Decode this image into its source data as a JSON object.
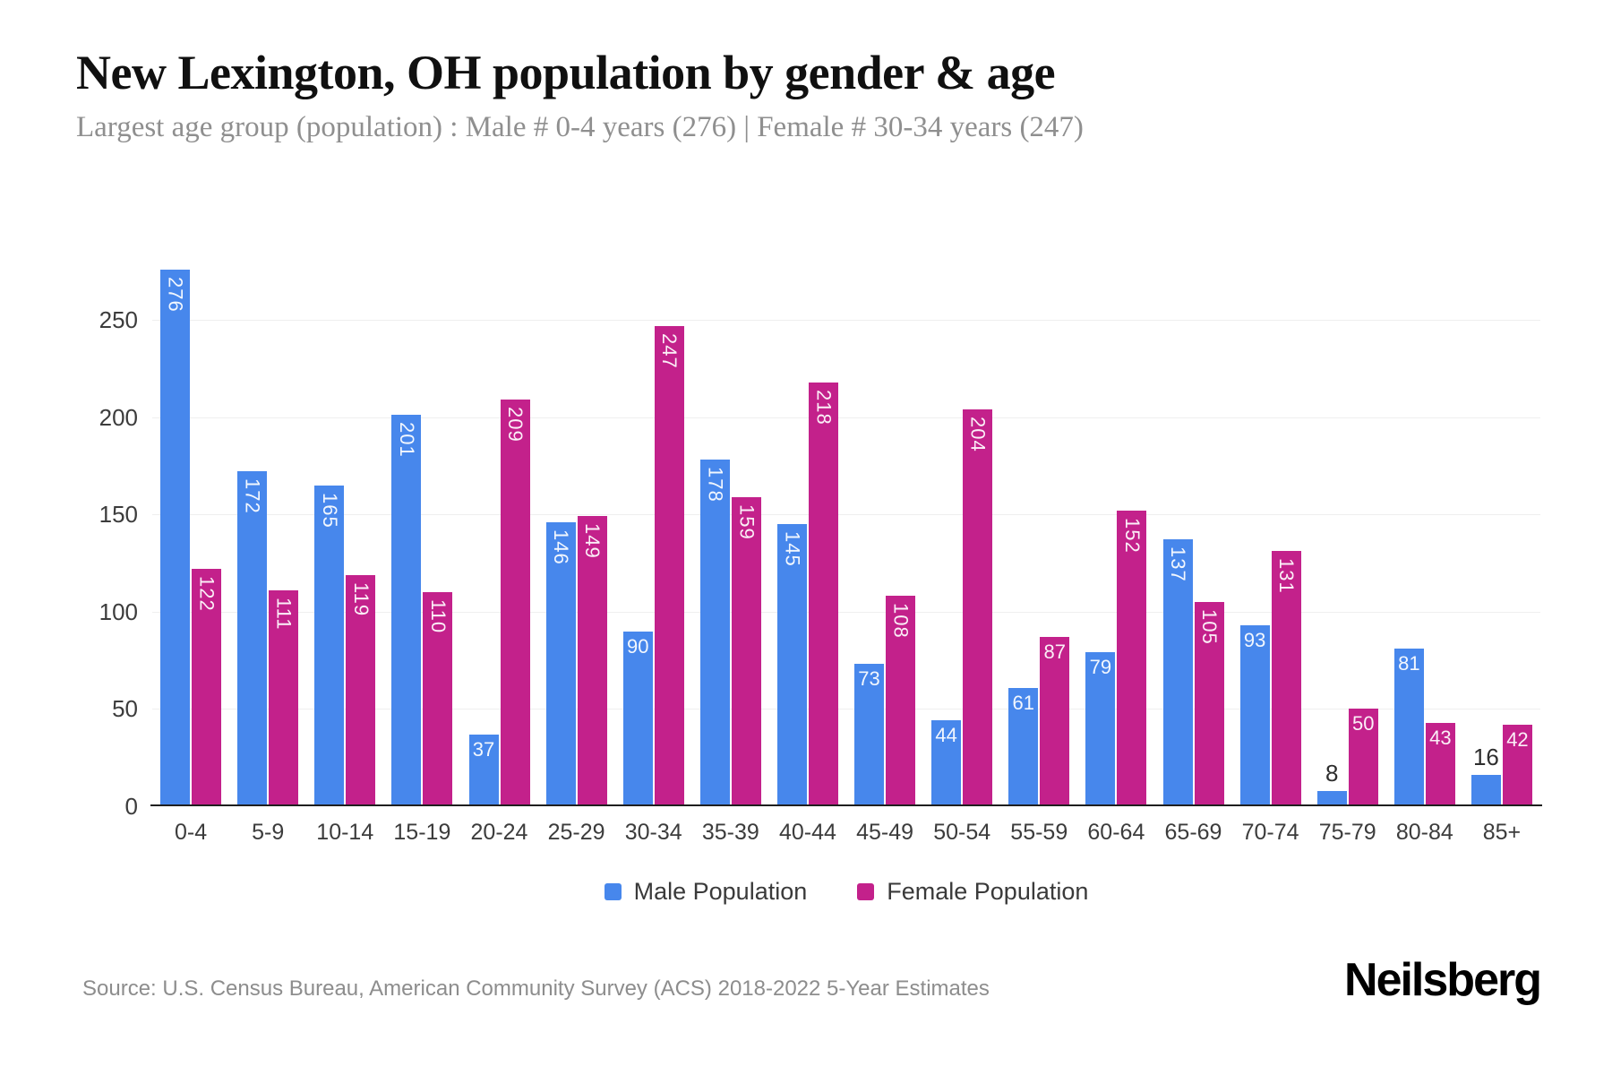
{
  "header": {
    "title": "New Lexington, OH population by gender & age",
    "subtitle": "Largest age group (population) : Male # 0-4 years (276) | Female # 30-34 years (247)"
  },
  "chart_data": {
    "type": "bar",
    "title": "New Lexington, OH population by gender & age",
    "categories": [
      "0-4",
      "5-9",
      "10-14",
      "15-19",
      "20-24",
      "25-29",
      "30-34",
      "35-39",
      "40-44",
      "45-49",
      "50-54",
      "55-59",
      "60-64",
      "65-69",
      "70-74",
      "75-79",
      "80-84",
      "85+"
    ],
    "series": [
      {
        "name": "Male Population",
        "color": "#4787ec",
        "values": [
          276,
          172,
          165,
          201,
          37,
          146,
          90,
          178,
          145,
          73,
          44,
          61,
          79,
          137,
          93,
          8,
          81,
          16
        ]
      },
      {
        "name": "Female Population",
        "color": "#c3218b",
        "values": [
          122,
          111,
          119,
          110,
          209,
          149,
          247,
          159,
          218,
          108,
          204,
          87,
          152,
          105,
          131,
          50,
          43,
          42
        ]
      }
    ],
    "xlabel": "",
    "ylabel": "",
    "yticks": [
      0,
      50,
      100,
      150,
      200,
      250
    ],
    "ylim": [
      0,
      299
    ],
    "grid": true,
    "legend_position": "bottom",
    "value_labels": true,
    "grid_color": "#efefef",
    "axis_color": "#1f1f1f"
  },
  "footer": {
    "source": "Source: U.S. Census Bureau, American Community Survey (ACS) 2018-2022 5-Year Estimates",
    "brand": "Neilsberg"
  }
}
